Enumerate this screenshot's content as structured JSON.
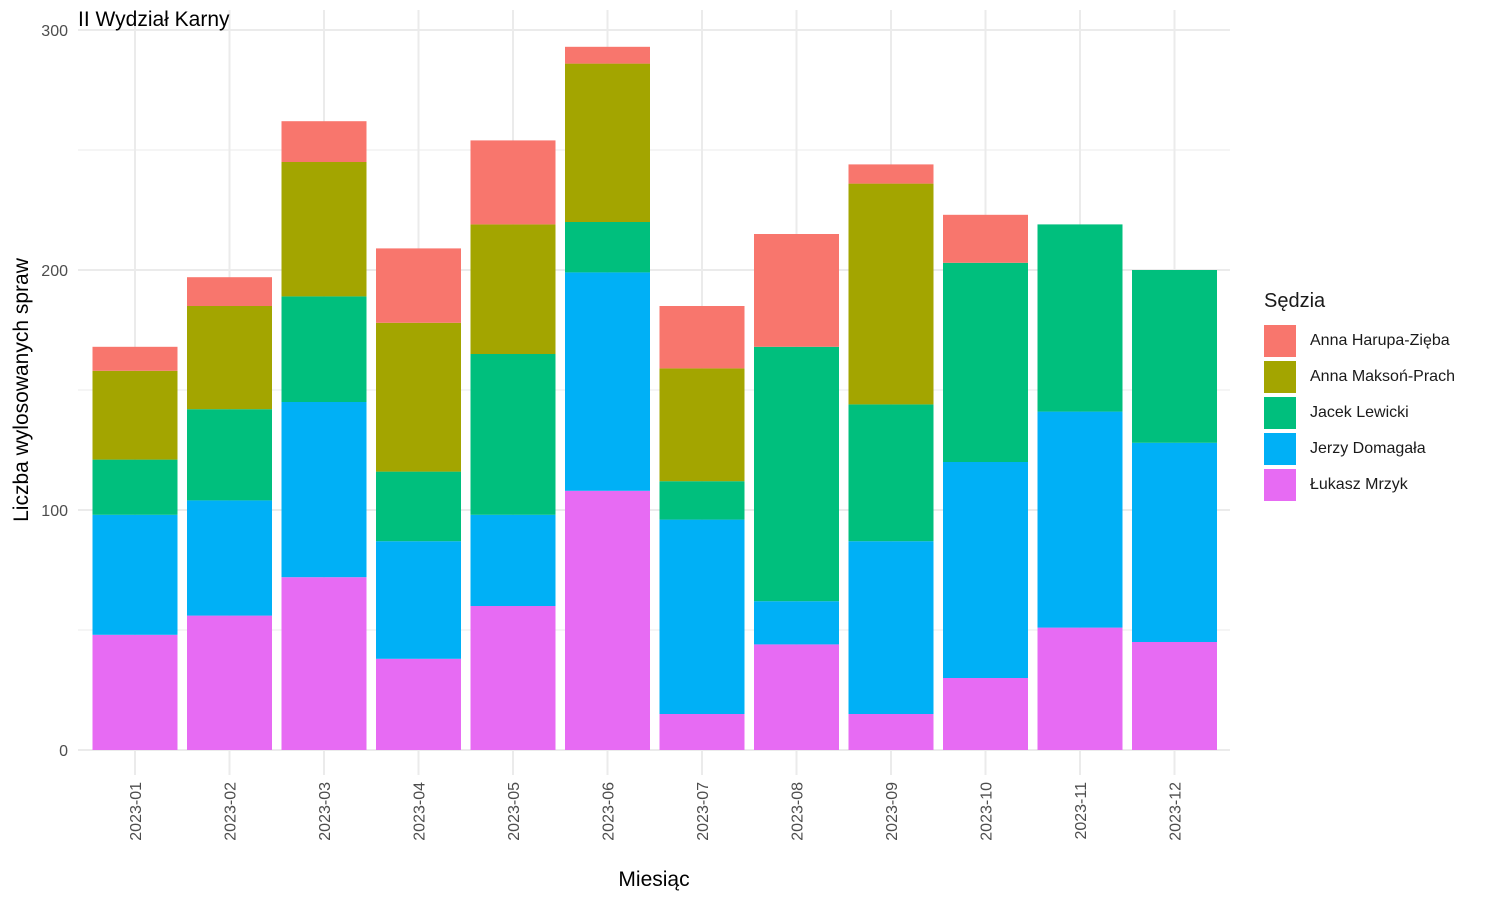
{
  "chart_data": {
    "type": "bar",
    "stacked": true,
    "title": "II Wydział Karny",
    "xlabel": "Miesiąc",
    "ylabel": "Liczba wylosowanych spraw",
    "ylim": [
      0,
      300
    ],
    "yticks": [
      0,
      100,
      200,
      300
    ],
    "grid": true,
    "legend_position": "right",
    "legend_title": "Sędzia",
    "categories": [
      "2023-01",
      "2023-02",
      "2023-03",
      "2023-04",
      "2023-05",
      "2023-06",
      "2023-07",
      "2023-08",
      "2023-09",
      "2023-10",
      "2023-11",
      "2023-12"
    ],
    "series": [
      {
        "name": "Łukasz Mrzyk",
        "color": "#E76BF3",
        "values": [
          48,
          56,
          72,
          38,
          60,
          108,
          15,
          44,
          15,
          30,
          51,
          45
        ]
      },
      {
        "name": "Jerzy Domagała",
        "color": "#00B0F6",
        "values": [
          50,
          48,
          73,
          49,
          38,
          91,
          81,
          18,
          72,
          90,
          90,
          83
        ]
      },
      {
        "name": "Jacek Lewicki",
        "color": "#00BF7D",
        "values": [
          23,
          38,
          44,
          29,
          67,
          21,
          16,
          106,
          57,
          83,
          78,
          72
        ]
      },
      {
        "name": "Anna Maksoń-Prach",
        "color": "#A3A500",
        "values": [
          37,
          43,
          56,
          62,
          54,
          66,
          47,
          0,
          92,
          0,
          0,
          0
        ]
      },
      {
        "name": "Anna Harupa-Zięba",
        "color": "#F8766D",
        "values": [
          10,
          12,
          17,
          31,
          35,
          7,
          26,
          47,
          8,
          20,
          0,
          0
        ]
      }
    ],
    "legend_order": [
      "Anna Harupa-Zięba",
      "Anna Maksoń-Prach",
      "Jacek Lewicki",
      "Jerzy Domagała",
      "Łukasz Mrzyk"
    ]
  }
}
